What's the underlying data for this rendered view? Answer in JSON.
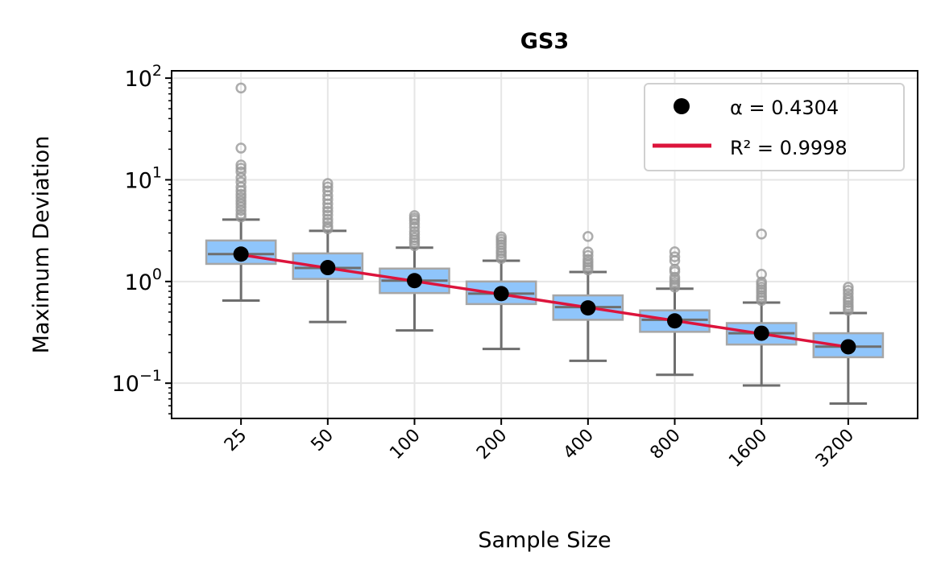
{
  "chart_data": {
    "type": "box",
    "title": "GS3",
    "xlabel": "Sample Size",
    "ylabel": "Maximum Deviation",
    "yscale": "log",
    "ylim": [
      0.045,
      118
    ],
    "y_ticks": [
      {
        "value": 0.1,
        "base": "10",
        "exp": "−1"
      },
      {
        "value": 1,
        "base": "10",
        "exp": "0"
      },
      {
        "value": 10,
        "base": "10",
        "exp": "1"
      },
      {
        "value": 100,
        "base": "10",
        "exp": "2"
      }
    ],
    "grid": true,
    "categories": [
      "25",
      "50",
      "100",
      "200",
      "400",
      "800",
      "1600",
      "3200"
    ],
    "boxes": [
      {
        "q1": 1.49,
        "median": 1.86,
        "q3": 2.53,
        "whislo": 0.65,
        "whishi": 4.06,
        "fliers": [
          4.3,
          4.6,
          5.0,
          5.4,
          5.8,
          6.2,
          6.7,
          7.2,
          7.8,
          8.5,
          9.5,
          10.5,
          12,
          13,
          14,
          20.5,
          80
        ]
      },
      {
        "q1": 1.06,
        "median": 1.36,
        "q3": 1.89,
        "whislo": 0.4,
        "whishi": 3.15,
        "fliers": [
          3.3,
          3.5,
          3.8,
          4.1,
          4.5,
          4.9,
          5.3,
          5.8,
          6.4,
          7.0,
          7.8,
          8.5,
          9.2
        ]
      },
      {
        "q1": 0.77,
        "median": 1.02,
        "q3": 1.34,
        "whislo": 0.33,
        "whishi": 2.15,
        "fliers": [
          2.25,
          2.4,
          2.55,
          2.7,
          2.9,
          3.1,
          3.4,
          3.7,
          4.0,
          4.2,
          4.45
        ]
      },
      {
        "q1": 0.6,
        "median": 0.76,
        "q3": 1.0,
        "whislo": 0.217,
        "whishi": 1.6,
        "fliers": [
          1.68,
          1.78,
          1.9,
          2.0,
          2.15,
          2.3,
          2.45,
          2.6,
          2.75
        ]
      },
      {
        "q1": 0.42,
        "median": 0.56,
        "q3": 0.73,
        "whislo": 0.166,
        "whishi": 1.24,
        "fliers": [
          1.3,
          1.38,
          1.46,
          1.55,
          1.65,
          1.8,
          1.95,
          2.77
        ]
      },
      {
        "q1": 0.32,
        "median": 0.42,
        "q3": 0.52,
        "whislo": 0.121,
        "whishi": 0.85,
        "fliers": [
          0.88,
          0.93,
          0.98,
          1.04,
          1.1,
          1.25,
          1.32,
          1.6,
          1.75,
          1.96
        ]
      },
      {
        "q1": 0.24,
        "median": 0.31,
        "q3": 0.39,
        "whislo": 0.095,
        "whishi": 0.62,
        "fliers": [
          0.65,
          0.69,
          0.73,
          0.78,
          0.83,
          0.88,
          0.94,
          0.99,
          1.18,
          2.93
        ]
      },
      {
        "q1": 0.18,
        "median": 0.229,
        "q3": 0.31,
        "whislo": 0.063,
        "whishi": 0.49,
        "fliers": [
          0.52,
          0.55,
          0.58,
          0.62,
          0.66,
          0.7,
          0.76,
          0.82,
          0.88
        ]
      }
    ],
    "means": {
      "name": "α = 0.4304",
      "values": [
        1.86,
        1.37,
        1.02,
        0.76,
        0.55,
        0.41,
        0.31,
        0.228
      ]
    },
    "fit": {
      "name": "R² = 0.9998",
      "alpha": 0.4304,
      "start": 1.83,
      "end": 0.227
    },
    "legend": {
      "position": "top-right",
      "entries": [
        "α = 0.4304",
        "R² = 0.9998"
      ]
    },
    "colors": {
      "box_fill": "#8fc5fb",
      "box_edge": "#a6a6a6",
      "whisker": "#6e6e6e",
      "flier": "#999999",
      "mean": "#000000",
      "fit": "#dc143c",
      "grid": "#e6e6e6"
    }
  }
}
